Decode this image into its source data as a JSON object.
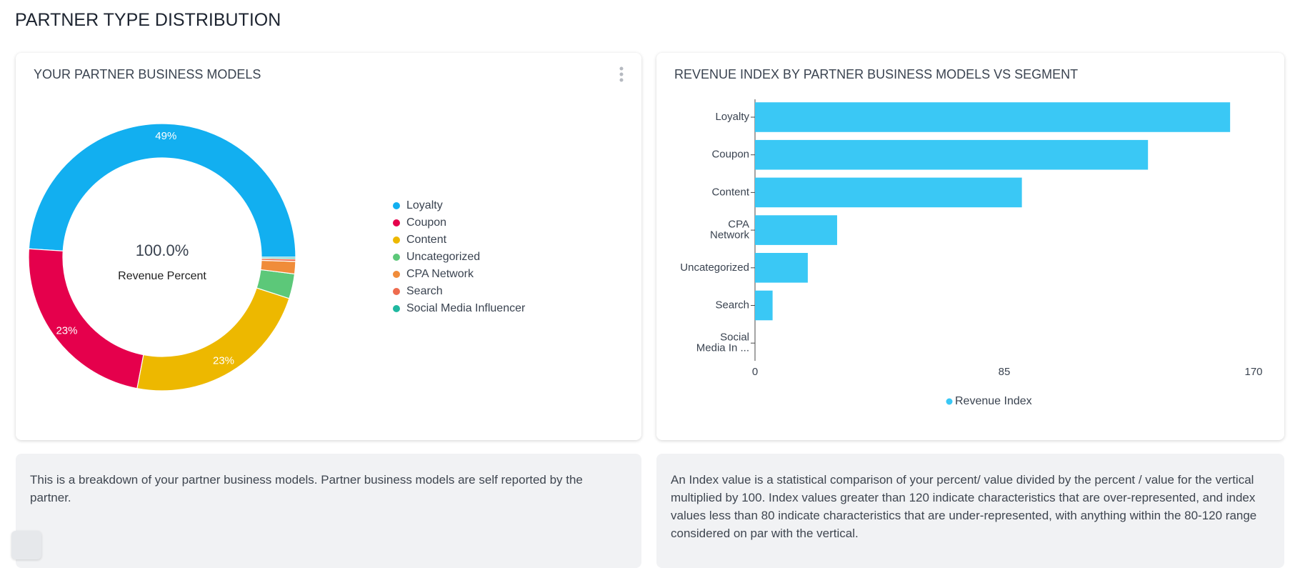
{
  "page": {
    "title": "PARTNER TYPE DISTRIBUTION"
  },
  "chart_data": [
    {
      "type": "pie",
      "title": "YOUR PARTNER BUSINESS MODELS",
      "categories": [
        "Loyalty",
        "Coupon",
        "Content",
        "Uncategorized",
        "CPA Network",
        "Search",
        "Social Media Influencer"
      ],
      "values": [
        49,
        23,
        23,
        3,
        1.5,
        0.3,
        0.2
      ],
      "value_labels": [
        "49%",
        "23%",
        "23%",
        null,
        null,
        null,
        null
      ],
      "colors": [
        "#12aff0",
        "#e5004c",
        "#edb800",
        "#5cc879",
        "#f08c3a",
        "#ee6b4e",
        "#1fb8a0"
      ],
      "center_value": "100.0%",
      "center_label": "Revenue Percent",
      "legend": "right"
    },
    {
      "type": "bar",
      "orientation": "horizontal",
      "title": "REVENUE INDEX BY PARTNER BUSINESS MODELS VS SEGMENT",
      "categories": [
        "Loyalty",
        "Coupon",
        "Content",
        "CPA Network",
        "Uncategorized",
        "Search",
        "Social Media In ..."
      ],
      "series": [
        {
          "name": "Revenue Index",
          "color": "#3ac8f5",
          "values": [
            162,
            134,
            91,
            28,
            18,
            6,
            0
          ]
        }
      ],
      "xlim": [
        0,
        170
      ],
      "xticks": [
        0,
        85,
        170
      ],
      "legend": "bottom"
    }
  ],
  "descriptions": [
    "This is a breakdown of your partner business models. Partner business models are self reported by the partner.",
    "An Index value is a statistical comparison of your percent/ value divided by the percent / value for the vertical multiplied by 100. Index values greater than 120 indicate characteristics that are over-represented, and index values less than 80 indicate characteristics that are under-represented, with anything within the 80-120 range considered on par with the vertical."
  ]
}
